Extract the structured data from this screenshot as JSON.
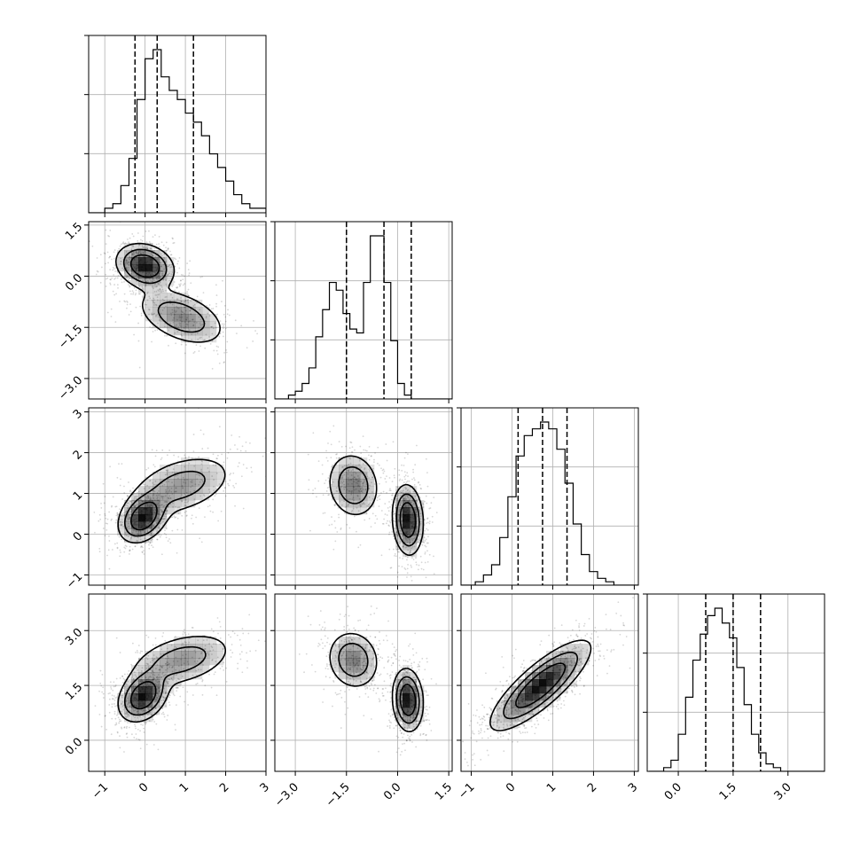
{
  "chart_data": {
    "type": "corner",
    "title": "",
    "parameters": 4,
    "axes": [
      {
        "name": "",
        "range": [
          -1.4,
          3.0
        ],
        "ticks": [
          -1,
          0,
          1,
          2,
          3
        ],
        "tick_labels": [
          "−1",
          "0",
          "1",
          "2",
          "3"
        ]
      },
      {
        "name": "",
        "range": [
          -3.6,
          1.6
        ],
        "ticks": [
          -3.0,
          -1.5,
          0.0,
          1.5
        ],
        "tick_labels": [
          "−3.0",
          "−1.5",
          "0.0",
          "1.5"
        ]
      },
      {
        "name": "",
        "range": [
          -1.25,
          3.1
        ],
        "ticks": [
          -1,
          0,
          1,
          2,
          3
        ],
        "tick_labels": [
          "−1",
          "0",
          "1",
          "2",
          "3"
        ]
      },
      {
        "name": "",
        "range": [
          -0.85,
          4.0
        ],
        "ticks": [
          0.0,
          1.5,
          3.0
        ],
        "tick_labels": [
          "0.0",
          "1.5",
          "3.0"
        ]
      }
    ],
    "grid": true,
    "histograms": [
      {
        "parameter": 0,
        "bin_start": -1.4,
        "bin_width": 0.2,
        "counts": [
          0,
          0,
          1,
          2,
          6,
          12,
          25,
          34,
          36,
          30,
          27,
          25,
          22,
          20,
          17,
          13,
          10,
          7,
          4,
          2,
          1,
          1
        ],
        "quantiles": [
          -0.25,
          0.3,
          1.2
        ]
      },
      {
        "parameter": 1,
        "bin_start": -3.6,
        "bin_width": 0.2,
        "counts": [
          0,
          0,
          1,
          2,
          4,
          8,
          16,
          23,
          30,
          28,
          22,
          18,
          17,
          30,
          42,
          42,
          30,
          15,
          4,
          1,
          0,
          0,
          0,
          0,
          0,
          0
        ],
        "quantiles": [
          -1.5,
          -0.4,
          0.4
        ]
      },
      {
        "parameter": 2,
        "bin_start": -1.3,
        "bin_width": 0.2,
        "counts": [
          0,
          0,
          1,
          3,
          6,
          14,
          26,
          38,
          44,
          46,
          48,
          46,
          40,
          30,
          18,
          9,
          4,
          2,
          1,
          0,
          0,
          0
        ],
        "quantiles": [
          0.15,
          0.75,
          1.35
        ]
      },
      {
        "parameter": 3,
        "bin_start": -0.8,
        "bin_width": 0.2,
        "counts": [
          0,
          0,
          1,
          3,
          10,
          20,
          30,
          37,
          42,
          44,
          40,
          36,
          28,
          18,
          10,
          5,
          2,
          1,
          0,
          0,
          0,
          0,
          0,
          0
        ],
        "quantiles": [
          0.75,
          1.5,
          2.25
        ]
      }
    ],
    "pair_panels": [
      {
        "x": 0,
        "y": 1,
        "modes": [
          {
            "center": [
              0.0,
              0.3
            ],
            "sigma": [
              0.35,
              0.32
            ],
            "rho": -0.2,
            "weight": 1.0
          },
          {
            "center": [
              0.9,
              -1.2
            ],
            "sigma": [
              0.55,
              0.42
            ],
            "rho": -0.45,
            "weight": 0.55
          }
        ]
      },
      {
        "x": 0,
        "y": 2,
        "modes": [
          {
            "center": [
              -0.05,
              0.4
            ],
            "sigma": [
              0.3,
              0.3
            ],
            "rho": 0.3,
            "weight": 1.0
          },
          {
            "center": [
              0.9,
              1.2
            ],
            "sigma": [
              0.65,
              0.38
            ],
            "rho": 0.4,
            "weight": 0.5
          }
        ]
      },
      {
        "x": 1,
        "y": 2,
        "modes": [
          {
            "center": [
              0.3,
              0.35
            ],
            "sigma": [
              0.22,
              0.42
            ],
            "rho": -0.1,
            "weight": 1.0
          },
          {
            "center": [
              -1.3,
              1.2
            ],
            "sigma": [
              0.38,
              0.4
            ],
            "rho": -0.1,
            "weight": 0.6
          }
        ]
      },
      {
        "x": 0,
        "y": 3,
        "modes": [
          {
            "center": [
              -0.05,
              1.2
            ],
            "sigma": [
              0.3,
              0.34
            ],
            "rho": 0.3,
            "weight": 1.0
          },
          {
            "center": [
              0.9,
              2.2
            ],
            "sigma": [
              0.65,
              0.38
            ],
            "rho": 0.4,
            "weight": 0.5
          }
        ]
      },
      {
        "x": 1,
        "y": 3,
        "modes": [
          {
            "center": [
              0.3,
              1.1
            ],
            "sigma": [
              0.22,
              0.42
            ],
            "rho": -0.1,
            "weight": 1.0
          },
          {
            "center": [
              -1.3,
              2.2
            ],
            "sigma": [
              0.38,
              0.4
            ],
            "rho": -0.1,
            "weight": 0.6
          }
        ]
      },
      {
        "x": 2,
        "y": 3,
        "modes": [
          {
            "center": [
              0.7,
              1.5
            ],
            "sigma": [
              0.6,
              0.6
            ],
            "rho": 0.82,
            "weight": 1.0
          }
        ]
      }
    ],
    "contour_levels_fraction_of_peak": [
      0.12,
      0.32,
      0.6
    ],
    "colors": {
      "line": "#000000",
      "density": "#000000",
      "grid": "#b0b0b0",
      "background": "#ffffff"
    }
  }
}
